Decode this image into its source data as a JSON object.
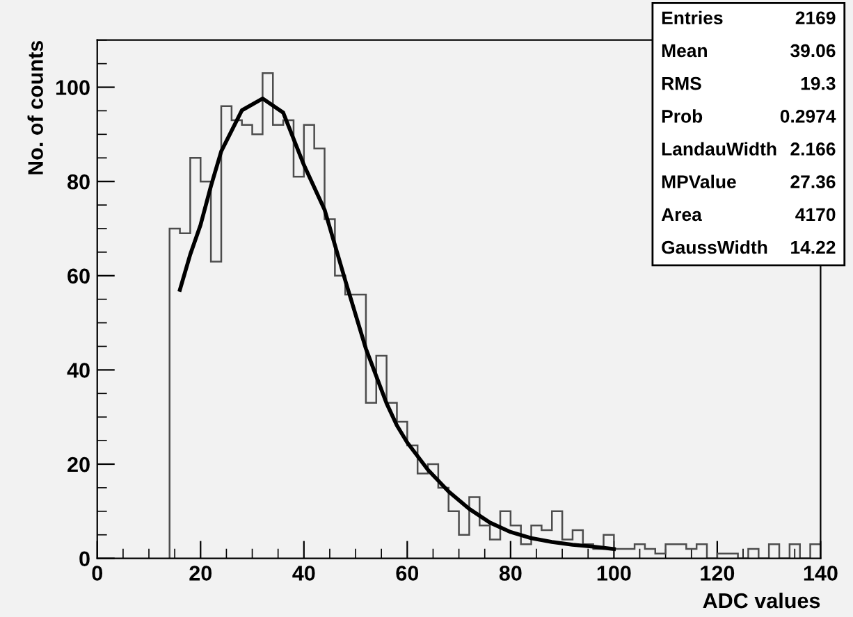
{
  "chart_data": {
    "type": "histogram",
    "xlabel": "ADC values",
    "ylabel": "No. of counts",
    "bins": [
      14,
      16,
      18,
      20,
      22,
      24,
      26,
      28,
      30,
      32,
      34,
      36,
      38,
      40,
      42,
      44,
      46,
      48,
      50,
      52,
      54,
      56,
      58,
      60,
      62,
      64,
      66,
      68,
      70,
      72,
      74,
      76,
      78,
      80,
      82,
      84,
      86,
      88,
      90,
      92,
      94,
      96,
      98,
      100,
      102,
      104,
      106,
      108,
      110,
      112,
      114,
      116,
      118,
      120,
      122,
      124,
      126,
      128,
      130,
      132,
      134,
      136,
      138,
      140
    ],
    "values": [
      70,
      69,
      85,
      80,
      63,
      96,
      93,
      92,
      90,
      103,
      92,
      93,
      81,
      92,
      87,
      72,
      60,
      56,
      56,
      33,
      43,
      33,
      29,
      24,
      18,
      20,
      15,
      10,
      5,
      13,
      7,
      4,
      10,
      7,
      3,
      7,
      6,
      10,
      4,
      6,
      3,
      2,
      5,
      2,
      2,
      3,
      2,
      1,
      3,
      3,
      2,
      3,
      0,
      1,
      1,
      0,
      2,
      0,
      3,
      0,
      3,
      0,
      3
    ],
    "color": "#4d4d4d",
    "series": [
      {
        "type": "line",
        "color": "#000000",
        "x": [
          16,
          18,
          20,
          22,
          24,
          28,
          32,
          36,
          40,
          44,
          48,
          52,
          54,
          56,
          58,
          60,
          64,
          68,
          72,
          76,
          80,
          84,
          88,
          92,
          96,
          100
        ],
        "values": [
          57,
          64.5,
          70.8,
          79,
          86.4,
          95.1,
          97.6,
          94.6,
          83.5,
          74,
          59,
          44.5,
          38.7,
          32.9,
          28.2,
          24.6,
          18.8,
          14.2,
          10.5,
          7.6,
          5.6,
          4.3,
          3.5,
          2.9,
          2.5,
          2
        ]
      }
    ],
    "xlim": [
      0,
      140
    ],
    "ylim": [
      0,
      110
    ],
    "xticks": [
      0,
      20,
      40,
      60,
      80,
      100,
      120,
      140
    ],
    "yticks": [
      0,
      20,
      40,
      60,
      80,
      100
    ],
    "grid": false,
    "annotations": [
      "Entries",
      "2169",
      "Mean",
      "39.06",
      "RMS",
      "19.3",
      "Prob",
      "0.2974",
      "LandauWidth",
      "2.166",
      "MPValue",
      "27.36",
      "Area",
      "4170",
      "GaussWidth",
      "14.22"
    ]
  }
}
